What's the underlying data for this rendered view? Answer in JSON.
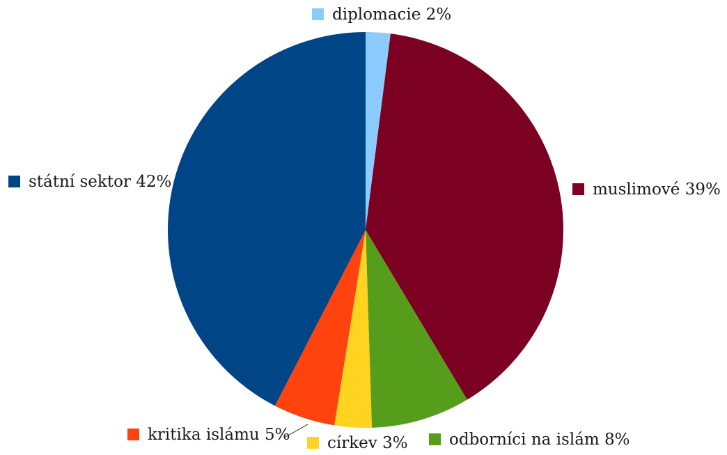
{
  "chart_data": {
    "type": "pie",
    "title": "",
    "slices": [
      {
        "label": "diplomacie",
        "value": 2,
        "display": "diplomacie 2%",
        "color": "#8ccbff"
      },
      {
        "label": "muslimové",
        "value": 39,
        "display": "muslimové 39%",
        "color": "#7c0021"
      },
      {
        "label": "odborníci na islám",
        "value": 8,
        "display": "odborníci na islám 8%",
        "color": "#579d1c"
      },
      {
        "label": "církev",
        "value": 3,
        "display": "církev 3%",
        "color": "#ffd320"
      },
      {
        "label": "kritika islámu",
        "value": 5,
        "display": "kritika islámu 5%",
        "color": "#ff420e"
      },
      {
        "label": "státní sektor",
        "value": 42,
        "display": "státní sektor 42%",
        "color": "#004586"
      }
    ],
    "legend": "labels beside slices"
  }
}
